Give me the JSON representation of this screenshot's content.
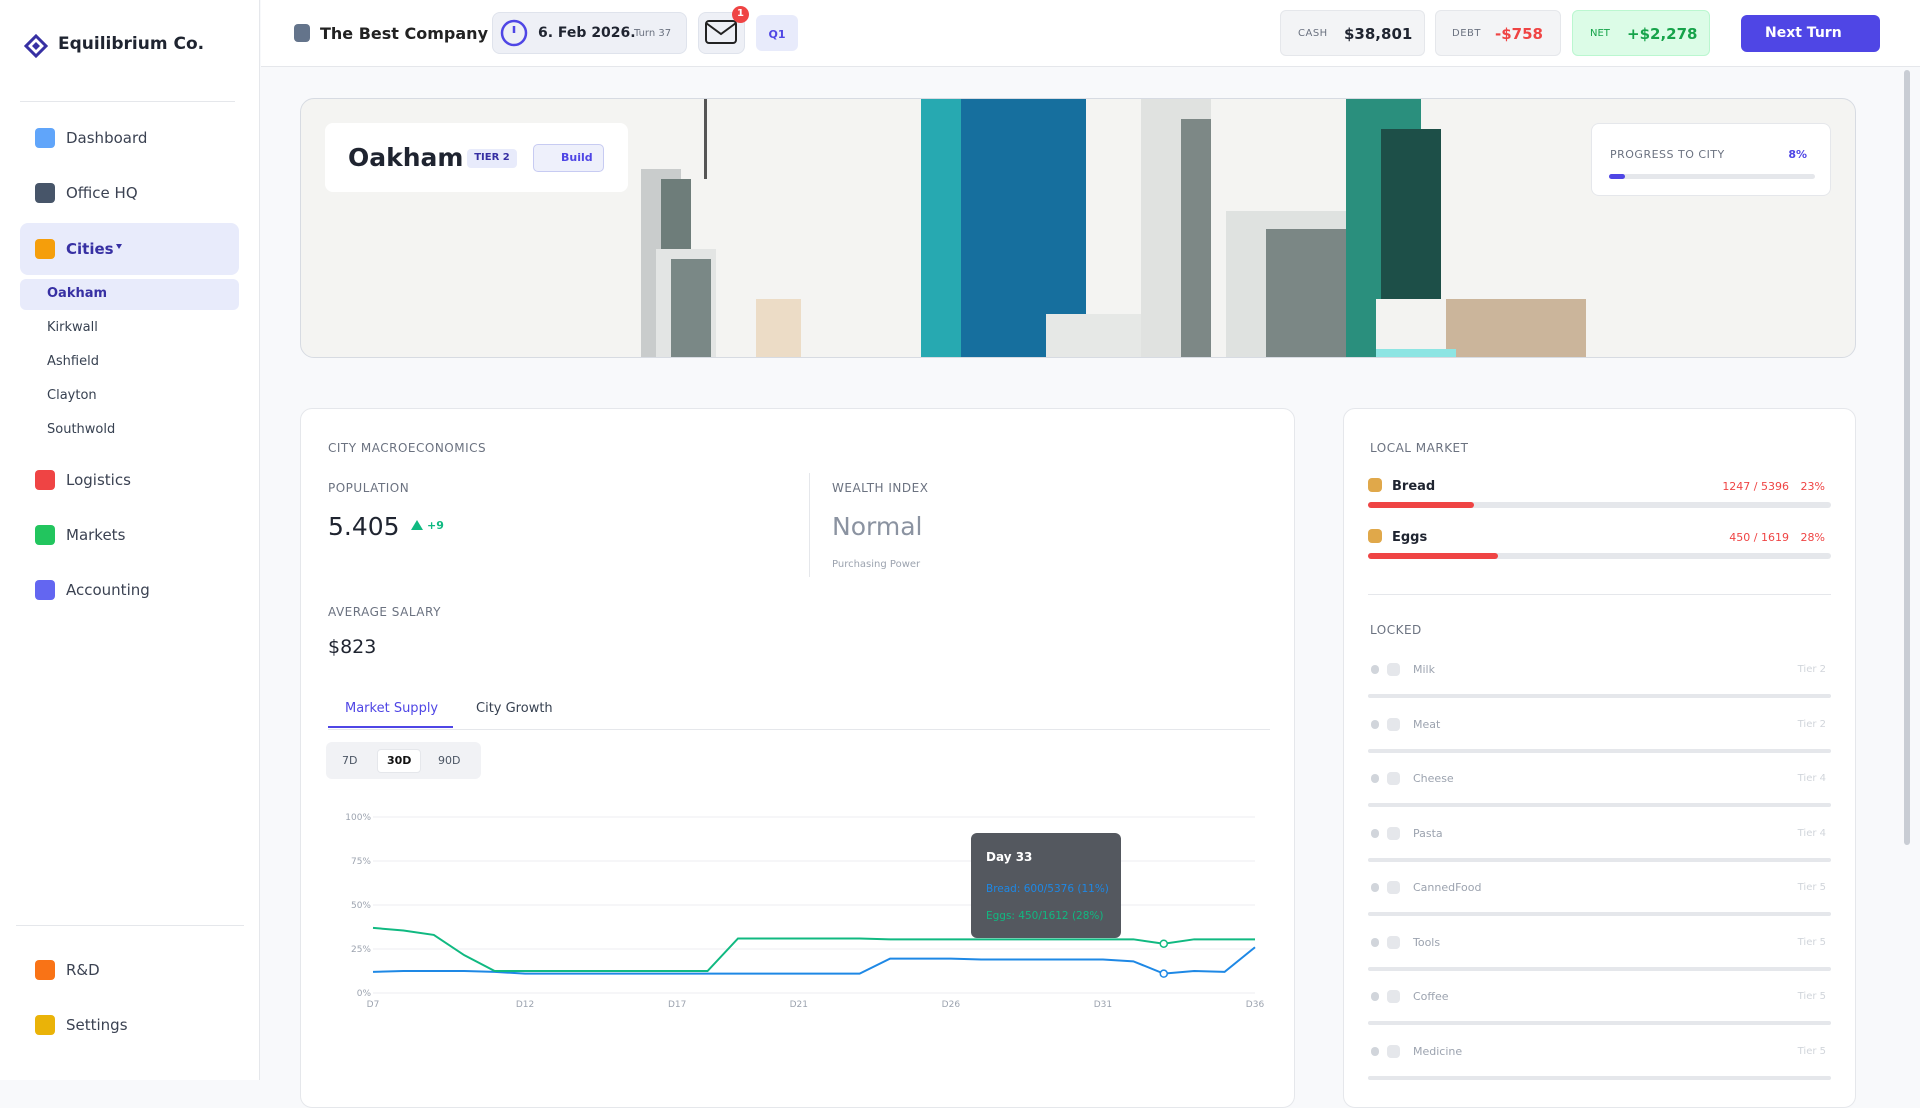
{
  "sidebar": {
    "brand": "Equilibrium Co.",
    "nav_top": [
      "Dashboard",
      "Office HQ",
      "Cities"
    ],
    "cities": [
      "Oakham",
      "Kirkwall",
      "Ashfield",
      "Clayton",
      "Southwold"
    ],
    "nav_mid": [
      "Logistics",
      "Markets",
      "Accounting"
    ],
    "nav_bottom": [
      "R&D",
      "Settings"
    ]
  },
  "topbar": {
    "company": "The Best Company",
    "date": "6. Feb 2026.",
    "turn": "Turn 37",
    "mail_count": 1,
    "quarter": "Q1",
    "cash_label": "CASH",
    "cash": "$38,801",
    "debt_label": "DEBT",
    "debt": "-$758",
    "net_label": "NET",
    "net": "+$2,278",
    "next_turn": "Next Turn"
  },
  "hero": {
    "city": "Oakham",
    "tier": "TIER 2",
    "build": "Build",
    "progress_label": "PROGRESS TO CITY",
    "progress": {
      "value": 8,
      "label": "8%"
    }
  },
  "macro": {
    "title": "CITY MACROECONOMICS",
    "population_label": "POPULATION",
    "population": "5.405",
    "population_change": "+9",
    "wealth_label": "WEALTH INDEX",
    "wealth": "Normal",
    "wealth_note": "Purchasing Power",
    "salary_label": "AVERAGE SALARY",
    "salary": "$823",
    "tabs": [
      "Market Supply",
      "City Growth"
    ],
    "ranges": [
      "7D",
      "30D",
      "90D"
    ]
  },
  "market": {
    "title": "LOCAL MARKET",
    "items": [
      {
        "name": "Bread",
        "stock": "1247 / 5396",
        "share": {
          "value": 23,
          "label": "23%"
        }
      },
      {
        "name": "Eggs",
        "stock": "450 / 1619",
        "share": {
          "value": 28,
          "label": "28%"
        }
      }
    ],
    "locked_title": "LOCKED",
    "locked": [
      {
        "name": "Milk",
        "tier": "Tier 2"
      },
      {
        "name": "Meat",
        "tier": "Tier 2"
      },
      {
        "name": "Cheese",
        "tier": "Tier 4"
      },
      {
        "name": "Pasta",
        "tier": "Tier 4"
      },
      {
        "name": "CannedFood",
        "tier": "Tier 5"
      },
      {
        "name": "Tools",
        "tier": "Tier 5"
      },
      {
        "name": "Coffee",
        "tier": "Tier 5"
      },
      {
        "name": "Medicine",
        "tier": "Tier 5"
      }
    ]
  },
  "chart_data": {
    "type": "line",
    "categories": [
      "D7",
      null,
      null,
      null,
      null,
      "D12",
      null,
      null,
      null,
      null,
      "D17",
      null,
      null,
      null,
      "D21",
      null,
      null,
      null,
      null,
      "D26",
      null,
      null,
      null,
      null,
      "D31",
      null,
      null,
      null,
      null,
      "D36"
    ],
    "series": [
      {
        "color": "#1e88e5",
        "values": [
          12,
          12.5,
          12.5,
          12.5,
          12,
          11,
          11,
          11,
          11,
          11,
          11,
          11,
          11,
          11,
          11,
          11,
          11,
          19.5,
          19.5,
          19.5,
          19,
          19,
          19,
          19,
          19,
          18,
          11,
          12.5,
          12,
          26
        ]
      },
      {
        "color": "#10b981",
        "values": [
          37,
          35.5,
          33,
          21.5,
          12.5,
          12.5,
          12.5,
          12.5,
          12.5,
          12.5,
          12.5,
          12.5,
          31,
          31,
          31,
          31,
          31,
          30.5,
          30.5,
          30.5,
          30.5,
          30.5,
          30.5,
          30.5,
          30.5,
          30.5,
          28,
          30.5,
          30.5,
          30.5
        ]
      }
    ],
    "ylim": [
      0,
      100
    ],
    "yticks": [
      {
        "value": 0,
        "label": "0%"
      },
      {
        "value": 25,
        "label": "25%"
      },
      {
        "value": 50,
        "label": "50%"
      },
      {
        "value": 75,
        "label": "75%"
      },
      {
        "value": 100,
        "label": "100%"
      }
    ],
    "grid": true,
    "highlight_index": 26,
    "tooltip": {
      "title": "Day 33",
      "lines": [
        "Bread: 600/5376 (11%)",
        "Eggs: 450/1612 (28%)"
      ]
    }
  }
}
